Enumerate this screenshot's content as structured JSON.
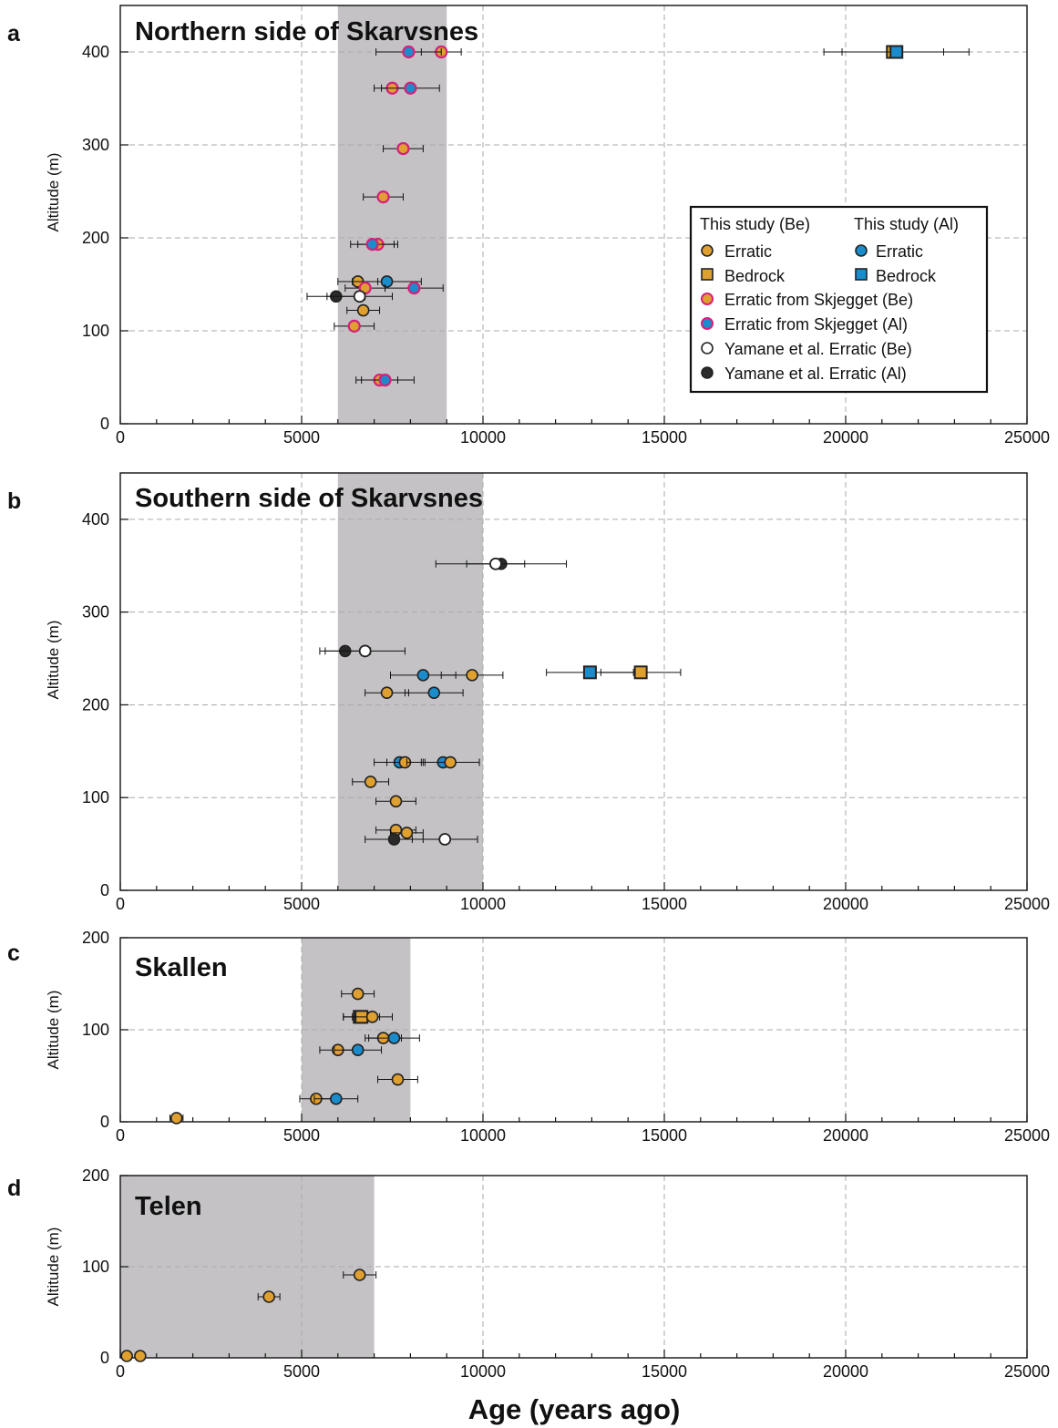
{
  "colors": {
    "be": "#e0a030",
    "al": "#1a8ccc",
    "skjegget_edge": "#d4217a",
    "skjegget_be_fill": "#e0a030",
    "skjegget_al_fill": "#1a8ccc",
    "yamane_be": "#ffffff",
    "yamane_al": "#2a2a2a",
    "band": "#c4c2c5",
    "grid": "#aaaaaa"
  },
  "x_axis": {
    "title": "Age (years ago)",
    "range": [
      0,
      25000
    ],
    "ticks": [
      0,
      5000,
      10000,
      15000,
      20000,
      25000
    ],
    "tick_labels": [
      "0",
      "5000",
      "10000",
      "15000",
      "20000",
      "25000"
    ]
  },
  "legend": {
    "header_be": "This study (Be)",
    "header_al": "This study (Al)",
    "items": [
      {
        "label": "Erratic",
        "marker": "circle",
        "fill": "#e0a030",
        "edge": "#222"
      },
      {
        "label": "Erratic",
        "marker": "circle",
        "fill": "#1a8ccc",
        "edge": "#222"
      },
      {
        "label": "Bedrock",
        "marker": "square",
        "fill": "#e0a030",
        "edge": "#222"
      },
      {
        "label": "Bedrock",
        "marker": "square",
        "fill": "#1a8ccc",
        "edge": "#222"
      },
      {
        "label": "Erratic from Skjegget (Be)",
        "marker": "circle",
        "fill": "#e0a030",
        "edge": "#d4217a"
      },
      {
        "label": "Erratic from Skjegget (Al)",
        "marker": "circle",
        "fill": "#1a8ccc",
        "edge": "#d4217a"
      },
      {
        "label": "Yamane et al. Erratic (Be)",
        "marker": "circle",
        "fill": "#ffffff",
        "edge": "#222"
      },
      {
        "label": "Yamane et al. Erratic (Al)",
        "marker": "circle",
        "fill": "#2a2a2a",
        "edge": "#222"
      }
    ]
  },
  "chart_data": [
    {
      "type": "scatter",
      "panel": "a",
      "title": "Northern side of Skarvsnes",
      "ylabel": "Altitude (m)",
      "xlim": [
        0,
        25000
      ],
      "ylim": [
        0,
        450
      ],
      "yticks": [
        0,
        100,
        200,
        300,
        400
      ],
      "band": [
        6000,
        9000
      ],
      "grid": true,
      "legend_position": "middle-right",
      "points": [
        {
          "kind": "skj_be",
          "x": 8850,
          "y": 400,
          "err": 550
        },
        {
          "kind": "skj_al",
          "x": 7950,
          "y": 400,
          "err": 900
        },
        {
          "kind": "skj_be",
          "x": 7500,
          "y": 361,
          "err": 500
        },
        {
          "kind": "skj_al",
          "x": 8000,
          "y": 361,
          "err": 800
        },
        {
          "kind": "skj_be",
          "x": 7800,
          "y": 296,
          "err": 550
        },
        {
          "kind": "skj_be",
          "x": 7250,
          "y": 244,
          "err": 550
        },
        {
          "kind": "skj_be",
          "x": 7100,
          "y": 193,
          "err": 550
        },
        {
          "kind": "skj_al",
          "x": 6950,
          "y": 193,
          "err": 600
        },
        {
          "kind": "be",
          "x": 6550,
          "y": 153,
          "err": 550
        },
        {
          "kind": "al",
          "x": 7350,
          "y": 153,
          "err": 950
        },
        {
          "kind": "skj_be",
          "x": 6750,
          "y": 146,
          "err": 550
        },
        {
          "kind": "skj_al",
          "x": 8100,
          "y": 146,
          "err": 800
        },
        {
          "kind": "yam_al",
          "x": 5950,
          "y": 137,
          "err": 800
        },
        {
          "kind": "yam_be",
          "x": 6600,
          "y": 137,
          "err": 900
        },
        {
          "kind": "be",
          "x": 6700,
          "y": 122,
          "err": 450
        },
        {
          "kind": "skj_be",
          "x": 6450,
          "y": 105,
          "err": 550
        },
        {
          "kind": "skj_be",
          "x": 7150,
          "y": 47,
          "err": 500
        },
        {
          "kind": "skj_al",
          "x": 7300,
          "y": 47,
          "err": 800
        },
        {
          "kind": "be_bed",
          "x": 21300,
          "y": 400,
          "err": 1400
        },
        {
          "kind": "al_bed",
          "x": 21400,
          "y": 400,
          "err": 2000
        }
      ]
    },
    {
      "type": "scatter",
      "panel": "b",
      "title": "Southern side of Skarvsnes",
      "ylabel": "Altitude (m)",
      "xlim": [
        0,
        25000
      ],
      "ylim": [
        0,
        450
      ],
      "yticks": [
        0,
        100,
        200,
        300,
        400
      ],
      "band": [
        6000,
        10000
      ],
      "grid": true,
      "points": [
        {
          "kind": "yam_al",
          "x": 10500,
          "y": 352,
          "err": 1800
        },
        {
          "kind": "yam_be",
          "x": 10350,
          "y": 352,
          "err": 800
        },
        {
          "kind": "yam_al",
          "x": 6200,
          "y": 258,
          "err": 700
        },
        {
          "kind": "yam_be",
          "x": 6750,
          "y": 258,
          "err": 1100
        },
        {
          "kind": "al",
          "x": 8350,
          "y": 232,
          "err": 900
        },
        {
          "kind": "be",
          "x": 9700,
          "y": 232,
          "err": 850
        },
        {
          "kind": "al_bed",
          "x": 12950,
          "y": 235,
          "err": 1200
        },
        {
          "kind": "be_bed",
          "x": 14350,
          "y": 235,
          "err": 1100
        },
        {
          "kind": "be",
          "x": 7350,
          "y": 213,
          "err": 600
        },
        {
          "kind": "al",
          "x": 8650,
          "y": 213,
          "err": 800
        },
        {
          "kind": "al",
          "x": 7700,
          "y": 138,
          "err": 700
        },
        {
          "kind": "be",
          "x": 7850,
          "y": 138,
          "err": 500
        },
        {
          "kind": "al",
          "x": 8900,
          "y": 138,
          "err": 1000
        },
        {
          "kind": "be",
          "x": 9100,
          "y": 138,
          "err": 800
        },
        {
          "kind": "be",
          "x": 6900,
          "y": 117,
          "err": 500
        },
        {
          "kind": "be",
          "x": 7600,
          "y": 96,
          "err": 550
        },
        {
          "kind": "be",
          "x": 7600,
          "y": 65,
          "err": 550
        },
        {
          "kind": "be",
          "x": 7900,
          "y": 62,
          "err": 450
        },
        {
          "kind": "yam_al",
          "x": 7550,
          "y": 55,
          "err": 800
        },
        {
          "kind": "yam_be",
          "x": 8950,
          "y": 55,
          "err": 900
        }
      ]
    },
    {
      "type": "scatter",
      "panel": "c",
      "title": "Skallen",
      "ylabel": "Altitude (m)",
      "xlim": [
        0,
        25000
      ],
      "ylim": [
        0,
        200
      ],
      "yticks": [
        0,
        100,
        200
      ],
      "band": [
        5000,
        8000
      ],
      "grid": true,
      "points": [
        {
          "kind": "be",
          "x": 6550,
          "y": 139,
          "err": 450
        },
        {
          "kind": "al_bed",
          "x": 6600,
          "y": 114,
          "err": 450
        },
        {
          "kind": "be_bed",
          "x": 6650,
          "y": 114,
          "err": 500
        },
        {
          "kind": "be",
          "x": 6950,
          "y": 114,
          "err": 550
        },
        {
          "kind": "be",
          "x": 7250,
          "y": 91,
          "err": 500
        },
        {
          "kind": "al",
          "x": 7550,
          "y": 91,
          "err": 700
        },
        {
          "kind": "be",
          "x": 6000,
          "y": 78,
          "err": 500
        },
        {
          "kind": "al",
          "x": 6550,
          "y": 78,
          "err": 650
        },
        {
          "kind": "be",
          "x": 7650,
          "y": 46,
          "err": 550
        },
        {
          "kind": "be",
          "x": 5400,
          "y": 25,
          "err": 450
        },
        {
          "kind": "al",
          "x": 5950,
          "y": 25,
          "err": 600
        },
        {
          "kind": "be",
          "x": 1550,
          "y": 4,
          "err": 180
        }
      ]
    },
    {
      "type": "scatter",
      "panel": "d",
      "title": "Telen",
      "ylabel": "Altitude (m)",
      "xlim": [
        0,
        25000
      ],
      "ylim": [
        0,
        200
      ],
      "yticks": [
        0,
        100,
        200
      ],
      "band": [
        0,
        7000
      ],
      "grid": true,
      "points": [
        {
          "kind": "be",
          "x": 6600,
          "y": 91,
          "err": 450
        },
        {
          "kind": "be",
          "x": 4100,
          "y": 67,
          "err": 300
        },
        {
          "kind": "be",
          "x": 180,
          "y": 2,
          "err": 0
        },
        {
          "kind": "be",
          "x": 550,
          "y": 2,
          "err": 0
        }
      ]
    }
  ]
}
